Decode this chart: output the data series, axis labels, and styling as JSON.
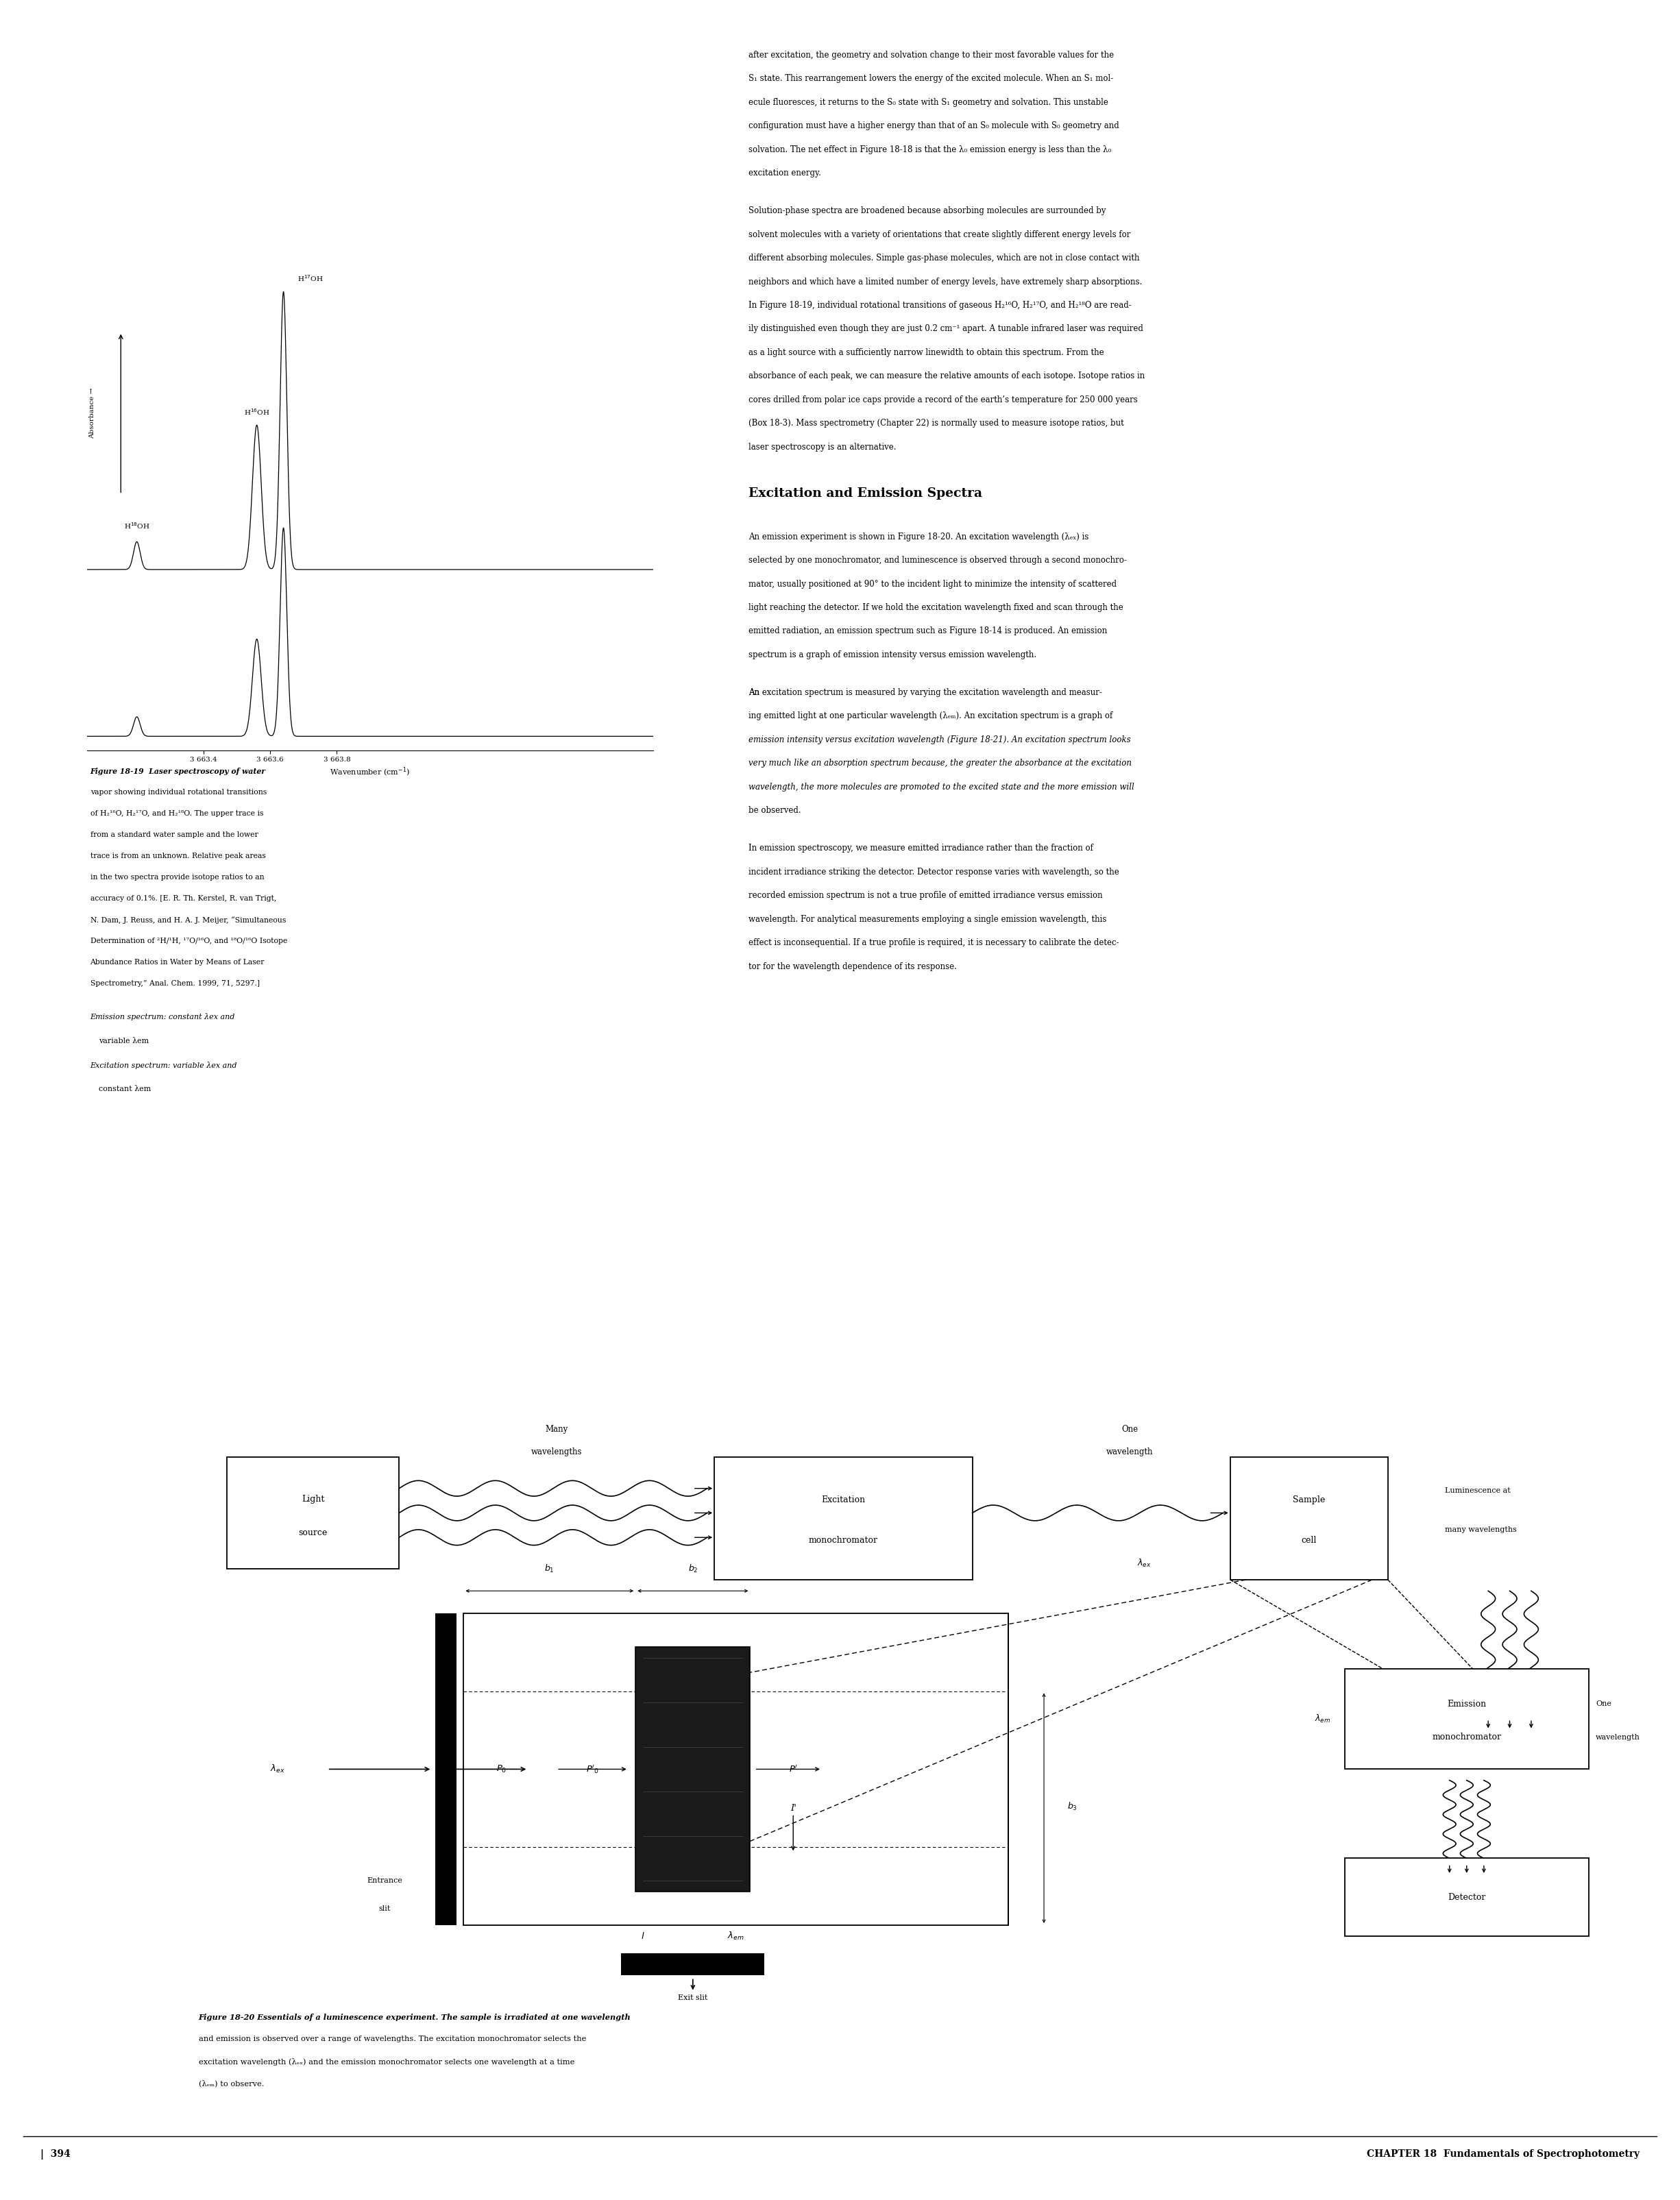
{
  "page_width": 24.31,
  "page_height": 31.9,
  "bg_color": "#ffffff",
  "top_text_right": [
    "after excitation, the geometry and solvation change to their most favorable values for the",
    "S₁ state. This rearrangement lowers the energy of the excited molecule. When an S₁ mol-",
    "ecule fluoresces, it returns to the S₀ state with S₁ geometry and solvation. This unstable",
    "configuration must have a higher energy than that of an S₀ molecule with S₀ geometry and",
    "solvation. The net effect in Figure 18-18 is that the λ₀ emission energy is less than the λ₀",
    "excitation energy."
  ],
  "para2_right": [
    "Solution-phase spectra are broadened because absorbing molecules are surrounded by",
    "solvent molecules with a variety of orientations that create slightly different energy levels for",
    "different absorbing molecules. Simple gas-phase molecules, which are not in close contact with",
    "neighbors and which have a limited number of energy levels, have extremely sharp absorptions.",
    "In Figure 18-19, individual rotational transitions of gaseous H₂¹⁶O, H₂¹⁷O, and H₂¹⁸O are read-",
    "ily distinguished even though they are just 0.2 cm⁻¹ apart. A tunable infrared laser was required",
    "as a light source with a sufficiently narrow linewidth to obtain this spectrum. From the",
    "absorbance of each peak, we can measure the relative amounts of each isotope. Isotope ratios in",
    "cores drilled from polar ice caps provide a record of the earth’s temperature for 250 000 years",
    "(Box 18-3). Mass spectrometry (Chapter 22) is normally used to measure isotope ratios, but",
    "laser spectroscopy is an alternative."
  ],
  "section_header": "Excitation and Emission Spectra",
  "para3_right": [
    "An emission experiment is shown in Figure 18-20. An excitation wavelength (λₑₓ) is",
    "selected by one monochromator, and luminescence is observed through a second monochro-",
    "mator, usually positioned at 90° to the incident light to minimize the intensity of scattered",
    "light reaching the detector. If we hold the excitation wavelength fixed and scan through the",
    "emitted radiation, an ⁠emission spectrum⁠ such as Figure 18-14 is produced. An emission",
    "spectrum is a graph of emission intensity versus emission wavelength."
  ],
  "para4_line1": "An ⁠excitation spectrum⁠ is measured by varying the excitation wavelength and measur-",
  "para4_rest": [
    "ing emitted light at one particular wavelength (λₑₘ). An excitation spectrum is a graph of",
    "emission intensity versus excitation wavelength (Figure 18-21). An excitation spectrum looks",
    "very much like an absorption spectrum because, the greater the absorbance at the excitation",
    "wavelength, the more molecules are promoted to the excited state and the more emission will",
    "be observed."
  ],
  "para5_right": [
    "In emission spectroscopy, we measure emitted irradiance rather than the fraction of",
    "incident irradiance striking the detector. Detector response varies with wavelength, so the",
    "recorded emission spectrum is not a true profile of emitted irradiance versus emission",
    "wavelength. For analytical measurements employing a single emission wavelength, this",
    "effect is inconsequential. If a true profile is required, it is necessary to calibrate the detec-",
    "tor for the wavelength dependence of its response."
  ],
  "fig19_caption_line0_bold": "Figure 18-19",
  "fig19_caption_line0_rest": "  Laser spectroscopy of water",
  "fig19_caption_rest": [
    "vapor showing individual rotational transitions",
    "of H₂¹⁶O, H₂¹⁷O, and H₂¹⁸O. The upper trace is",
    "from a standard water sample and the lower",
    "trace is from an unknown. Relative peak areas",
    "in the two spectra provide isotope ratios to an",
    "accuracy of 0.1%. [E. R. Th. Kerstel, R. van Trigt,",
    "N. Dam, J. Reuss, and H. A. J. Meijer, “Simultaneous",
    "Determination of ²H/¹H, ¹⁷O/¹⁶O, and ¹⁸O/¹⁶O Isotope",
    "Abundance Ratios in Water by Means of Laser",
    "Spectrometry,” Anal. Chem. 1999, 71, 5297.]"
  ],
  "emission_note_lines": [
    [
      "italic",
      "Emission spectrum",
      "normal",
      ": constant λₑₓ and"
    ],
    [
      "normal",
      "variable λₑₘ",
      "",
      ""
    ],
    [
      "italic",
      "Excitation spectrum",
      "normal",
      ": variable λₑₓ and"
    ],
    [
      "normal",
      "constant λₑₘ",
      "",
      ""
    ]
  ],
  "fig20_caption_bold": "Figure 18-20",
  "fig20_caption_rest": "  Essentials of a luminescence experiment. The sample is irradiated at one wavelength and emission is observed over a range of wavelengths. The excitation monochromator selects the excitation wavelength (λₑₓ) and the emission monochromator selects one wavelength at a time (λₑₘ) to observe.",
  "page_number": "394",
  "chapter_header": "CHAPTER 18  Fundamentals of Spectrophotometry"
}
